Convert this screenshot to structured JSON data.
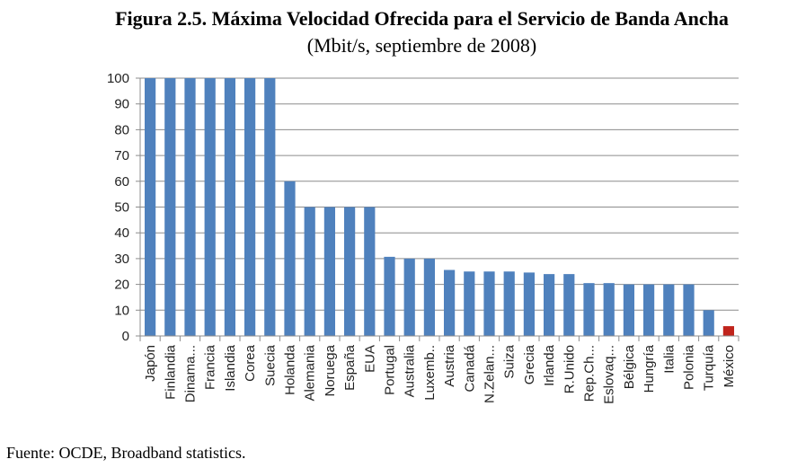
{
  "chart_data": {
    "type": "bar",
    "title": "Figura 2.5.  Máxima Velocidad Ofrecida para el Servicio de Banda Ancha",
    "subtitle": "(Mbit/s, septiembre de 2008)",
    "xlabel": "",
    "ylabel": "",
    "ylim": [
      0,
      100
    ],
    "yticks": [
      0,
      10,
      20,
      30,
      40,
      50,
      60,
      70,
      80,
      90,
      100
    ],
    "grid": true,
    "categories": [
      "Japón",
      "Finlandia",
      "Dinama...",
      "Francia",
      "Islandia",
      "Corea",
      "Suecia",
      "Holanda",
      "Alemania",
      "Noruega",
      "España",
      "EUA",
      "Portugal",
      "Australia",
      "Luxemb..",
      "Austria",
      "Canadá",
      "N.Zelan...",
      "Suiza",
      "Grecia",
      "Irlanda",
      "R.Unido",
      "Rep.Ch...",
      "Eslovaq...",
      "Bélgica",
      "Hungría",
      "Italia",
      "Polonia",
      "Turquía",
      "México"
    ],
    "values": [
      100,
      100,
      100,
      100,
      100,
      100,
      100,
      60,
      50,
      50,
      50,
      50,
      30.7,
      30,
      30,
      25.6,
      25,
      25,
      25,
      24.6,
      24,
      24,
      20.5,
      20.5,
      20,
      20,
      20,
      20,
      10,
      3.8
    ],
    "colors": {
      "bar": "#4f81bd",
      "highlight": "#c0241c",
      "grid": "#8c8c8c",
      "axis": "#8c8c8c"
    },
    "highlight_category": "México"
  },
  "source": "Fuente: OCDE, Broadband statistics."
}
